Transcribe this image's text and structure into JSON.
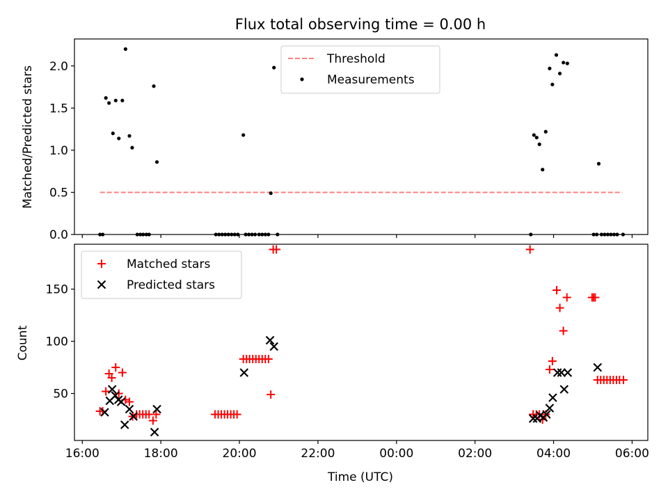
{
  "figure": {
    "title": "Flux total observing time = 0.00 h",
    "colors": {
      "threshold": "#ff7f7f",
      "measurement": "#000000",
      "matched": "#ff0000",
      "predicted": "#000000",
      "axis": "#000000"
    }
  },
  "chart_data": [
    {
      "type": "scatter",
      "title": "Flux total observing time = 0.00 h",
      "xlabel": "",
      "ylabel": "Matched/Predicted stars",
      "xlim": [
        15.8,
        30.4
      ],
      "ylim": [
        0,
        2.32
      ],
      "x_unit": "hours since 16:00 UTC on first night; ticks labelled as clock time",
      "xticks": [
        {
          "v": 16,
          "label": ""
        },
        {
          "v": 18,
          "label": ""
        },
        {
          "v": 20,
          "label": ""
        },
        {
          "v": 22,
          "label": ""
        },
        {
          "v": 24,
          "label": ""
        },
        {
          "v": 26,
          "label": ""
        },
        {
          "v": 28,
          "label": ""
        },
        {
          "v": 30,
          "label": ""
        }
      ],
      "yticks": [
        {
          "v": 0,
          "label": "0.0"
        },
        {
          "v": 0.5,
          "label": "0.5"
        },
        {
          "v": 1.0,
          "label": "1.0"
        },
        {
          "v": 1.5,
          "label": "1.5"
        },
        {
          "v": 2.0,
          "label": "2.0"
        }
      ],
      "legend": {
        "position": "top-center",
        "entries": [
          "Threshold",
          "Measurements"
        ]
      },
      "threshold": {
        "name": "Threshold",
        "y": 0.5,
        "x": [
          16.45,
          29.75
        ]
      },
      "series": [
        {
          "name": "Measurements",
          "points": [
            [
              16.45,
              0.0
            ],
            [
              16.52,
              0.0
            ],
            [
              16.6,
              1.62
            ],
            [
              16.68,
              1.56
            ],
            [
              16.78,
              1.2
            ],
            [
              16.85,
              1.59
            ],
            [
              16.93,
              1.14
            ],
            [
              17.02,
              1.59
            ],
            [
              17.1,
              2.2
            ],
            [
              17.2,
              1.17
            ],
            [
              17.27,
              1.03
            ],
            [
              17.4,
              0.0
            ],
            [
              17.48,
              0.0
            ],
            [
              17.55,
              0.0
            ],
            [
              17.63,
              0.0
            ],
            [
              17.7,
              0.0
            ],
            [
              17.82,
              1.76
            ],
            [
              17.9,
              0.86
            ],
            [
              19.4,
              0.0
            ],
            [
              19.48,
              0.0
            ],
            [
              19.56,
              0.0
            ],
            [
              19.64,
              0.0
            ],
            [
              19.72,
              0.0
            ],
            [
              19.8,
              0.0
            ],
            [
              19.88,
              0.0
            ],
            [
              19.96,
              0.0
            ],
            [
              20.1,
              1.18
            ],
            [
              20.16,
              0.0
            ],
            [
              20.24,
              0.0
            ],
            [
              20.32,
              0.0
            ],
            [
              20.4,
              0.0
            ],
            [
              20.5,
              0.0
            ],
            [
              20.58,
              0.0
            ],
            [
              20.66,
              0.0
            ],
            [
              20.74,
              0.0
            ],
            [
              20.8,
              0.49
            ],
            [
              20.88,
              1.98
            ],
            [
              20.97,
              0.0
            ],
            [
              27.42,
              0.0
            ],
            [
              27.5,
              1.18
            ],
            [
              27.57,
              1.15
            ],
            [
              27.64,
              1.07
            ],
            [
              27.72,
              0.77
            ],
            [
              27.8,
              1.22
            ],
            [
              27.9,
              1.97
            ],
            [
              27.97,
              1.78
            ],
            [
              28.07,
              2.13
            ],
            [
              28.16,
              1.91
            ],
            [
              28.25,
              2.04
            ],
            [
              28.35,
              2.03
            ],
            [
              29.02,
              0.0
            ],
            [
              29.1,
              0.0
            ],
            [
              29.15,
              0.84
            ],
            [
              29.22,
              0.0
            ],
            [
              29.3,
              0.0
            ],
            [
              29.38,
              0.0
            ],
            [
              29.46,
              0.0
            ],
            [
              29.54,
              0.0
            ],
            [
              29.62,
              0.0
            ],
            [
              29.77,
              0.0
            ]
          ]
        }
      ]
    },
    {
      "type": "scatter",
      "title": "",
      "xlabel": "Time (UTC)",
      "ylabel": "Count",
      "xlim": [
        15.8,
        30.4
      ],
      "ylim": [
        5,
        193
      ],
      "x_unit": "hours since 16:00 UTC on first night; ticks labelled as clock time",
      "xticks": [
        {
          "v": 16,
          "label": "16:00"
        },
        {
          "v": 18,
          "label": "18:00"
        },
        {
          "v": 20,
          "label": "20:00"
        },
        {
          "v": 22,
          "label": "22:00"
        },
        {
          "v": 24,
          "label": "00:00"
        },
        {
          "v": 26,
          "label": "02:00"
        },
        {
          "v": 28,
          "label": "04:00"
        },
        {
          "v": 30,
          "label": "06:00"
        }
      ],
      "yticks": [
        {
          "v": 50,
          "label": "50"
        },
        {
          "v": 100,
          "label": "100"
        },
        {
          "v": 150,
          "label": "150"
        }
      ],
      "legend": {
        "position": "top-left",
        "entries": [
          "Matched stars",
          "Predicted stars"
        ]
      },
      "series": [
        {
          "name": "Matched stars",
          "marker": "plus",
          "points": [
            [
              16.45,
              33
            ],
            [
              16.52,
              33
            ],
            [
              16.6,
              52
            ],
            [
              16.68,
              69
            ],
            [
              16.75,
              65
            ],
            [
              16.85,
              75
            ],
            [
              16.93,
              50
            ],
            [
              17.02,
              70
            ],
            [
              17.1,
              44
            ],
            [
              17.2,
              42
            ],
            [
              17.28,
              28
            ],
            [
              17.38,
              30
            ],
            [
              17.46,
              30
            ],
            [
              17.54,
              30
            ],
            [
              17.62,
              30
            ],
            [
              17.7,
              30
            ],
            [
              17.8,
              24
            ],
            [
              17.88,
              30
            ],
            [
              19.38,
              30
            ],
            [
              19.46,
              30
            ],
            [
              19.54,
              30
            ],
            [
              19.62,
              30
            ],
            [
              19.7,
              30
            ],
            [
              19.78,
              30
            ],
            [
              19.86,
              30
            ],
            [
              19.94,
              30
            ],
            [
              20.1,
              83
            ],
            [
              20.18,
              83
            ],
            [
              20.26,
              83
            ],
            [
              20.34,
              83
            ],
            [
              20.42,
              83
            ],
            [
              20.5,
              83
            ],
            [
              20.58,
              83
            ],
            [
              20.66,
              83
            ],
            [
              20.74,
              83
            ],
            [
              20.8,
              49
            ],
            [
              20.86,
              188
            ],
            [
              20.94,
              188
            ],
            [
              27.4,
              188
            ],
            [
              27.48,
              30
            ],
            [
              27.56,
              30
            ],
            [
              27.64,
              30
            ],
            [
              27.72,
              25
            ],
            [
              27.8,
              30
            ],
            [
              27.9,
              73
            ],
            [
              27.97,
              81
            ],
            [
              28.08,
              149
            ],
            [
              28.16,
              132
            ],
            [
              28.25,
              110
            ],
            [
              28.34,
              142
            ],
            [
              28.98,
              142
            ],
            [
              29.02,
              142
            ],
            [
              29.06,
              142
            ],
            [
              29.12,
              63
            ],
            [
              29.2,
              63
            ],
            [
              29.28,
              63
            ],
            [
              29.36,
              63
            ],
            [
              29.44,
              63
            ],
            [
              29.52,
              63
            ],
            [
              29.6,
              63
            ],
            [
              29.68,
              63
            ],
            [
              29.78,
              63
            ]
          ]
        },
        {
          "name": "Predicted stars",
          "marker": "x",
          "points": [
            [
              16.57,
              32
            ],
            [
              16.7,
              43
            ],
            [
              16.76,
              54
            ],
            [
              16.84,
              48
            ],
            [
              16.92,
              44
            ],
            [
              16.99,
              42
            ],
            [
              17.08,
              20
            ],
            [
              17.2,
              35
            ],
            [
              17.3,
              28
            ],
            [
              17.84,
              13
            ],
            [
              17.9,
              35
            ],
            [
              20.12,
              70
            ],
            [
              20.78,
              101
            ],
            [
              20.88,
              95
            ],
            [
              27.48,
              26
            ],
            [
              27.58,
              26
            ],
            [
              27.66,
              29
            ],
            [
              27.74,
              27
            ],
            [
              27.82,
              30
            ],
            [
              27.9,
              36
            ],
            [
              27.98,
              46
            ],
            [
              28.1,
              70
            ],
            [
              28.2,
              70
            ],
            [
              28.27,
              54
            ],
            [
              28.36,
              70
            ],
            [
              29.12,
              75
            ]
          ]
        }
      ]
    }
  ]
}
